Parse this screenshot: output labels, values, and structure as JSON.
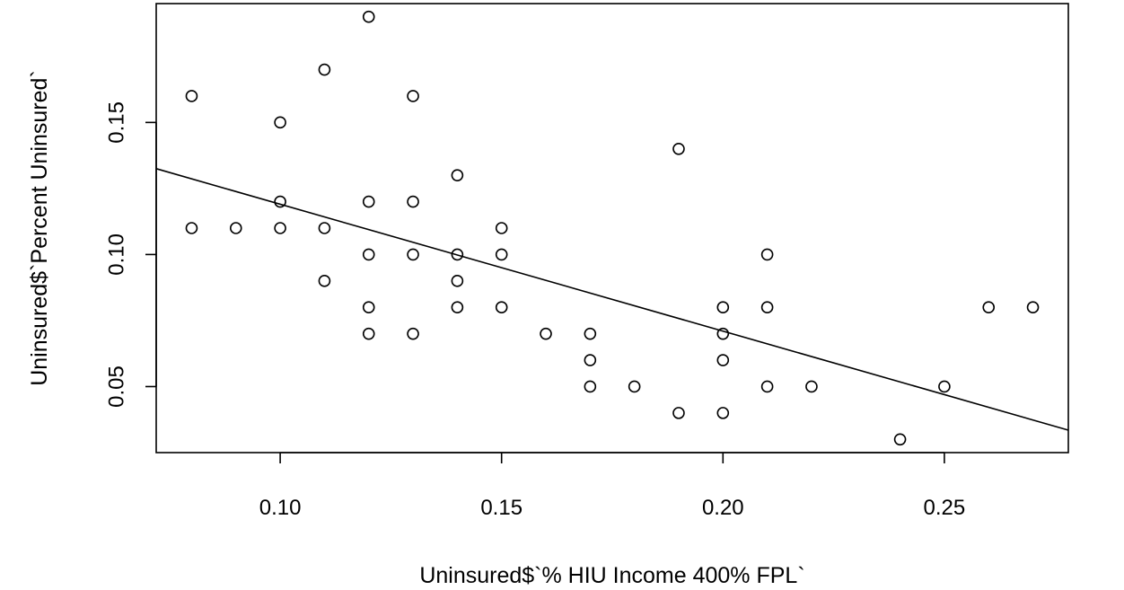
{
  "chart_data": {
    "type": "scatter",
    "title": "",
    "xlabel": "Uninsured$`% HIU Income 400% FPL`",
    "ylabel": "Uninsured$`Percent Uninsured`",
    "xlim": [
      0.072,
      0.278
    ],
    "ylim": [
      0.025,
      0.195
    ],
    "x_ticks": [
      0.1,
      0.15,
      0.2,
      0.25
    ],
    "x_tick_labels": [
      "0.10",
      "0.15",
      "0.20",
      "0.25"
    ],
    "y_ticks": [
      0.05,
      0.1,
      0.15
    ],
    "y_tick_labels": [
      "0.05",
      "0.10",
      "0.15"
    ],
    "grid": false,
    "points": [
      {
        "x": 0.08,
        "y": 0.16
      },
      {
        "x": 0.08,
        "y": 0.11
      },
      {
        "x": 0.09,
        "y": 0.11
      },
      {
        "x": 0.1,
        "y": 0.15
      },
      {
        "x": 0.1,
        "y": 0.12
      },
      {
        "x": 0.1,
        "y": 0.11
      },
      {
        "x": 0.11,
        "y": 0.17
      },
      {
        "x": 0.11,
        "y": 0.11
      },
      {
        "x": 0.11,
        "y": 0.09
      },
      {
        "x": 0.12,
        "y": 0.19
      },
      {
        "x": 0.12,
        "y": 0.12
      },
      {
        "x": 0.12,
        "y": 0.1
      },
      {
        "x": 0.12,
        "y": 0.08
      },
      {
        "x": 0.12,
        "y": 0.07
      },
      {
        "x": 0.13,
        "y": 0.16
      },
      {
        "x": 0.13,
        "y": 0.12
      },
      {
        "x": 0.13,
        "y": 0.1
      },
      {
        "x": 0.13,
        "y": 0.07
      },
      {
        "x": 0.14,
        "y": 0.13
      },
      {
        "x": 0.14,
        "y": 0.1
      },
      {
        "x": 0.14,
        "y": 0.09
      },
      {
        "x": 0.14,
        "y": 0.08
      },
      {
        "x": 0.15,
        "y": 0.11
      },
      {
        "x": 0.15,
        "y": 0.1
      },
      {
        "x": 0.15,
        "y": 0.08
      },
      {
        "x": 0.16,
        "y": 0.07
      },
      {
        "x": 0.17,
        "y": 0.07
      },
      {
        "x": 0.17,
        "y": 0.06
      },
      {
        "x": 0.17,
        "y": 0.05
      },
      {
        "x": 0.18,
        "y": 0.05
      },
      {
        "x": 0.19,
        "y": 0.14
      },
      {
        "x": 0.19,
        "y": 0.04
      },
      {
        "x": 0.2,
        "y": 0.08
      },
      {
        "x": 0.2,
        "y": 0.07
      },
      {
        "x": 0.2,
        "y": 0.06
      },
      {
        "x": 0.2,
        "y": 0.04
      },
      {
        "x": 0.21,
        "y": 0.1
      },
      {
        "x": 0.21,
        "y": 0.08
      },
      {
        "x": 0.21,
        "y": 0.05
      },
      {
        "x": 0.22,
        "y": 0.05
      },
      {
        "x": 0.24,
        "y": 0.03
      },
      {
        "x": 0.25,
        "y": 0.05
      },
      {
        "x": 0.26,
        "y": 0.08
      },
      {
        "x": 0.27,
        "y": 0.08
      }
    ],
    "fit_line": {
      "x": [
        0.072,
        0.278
      ],
      "y": [
        0.1325,
        0.0335
      ]
    }
  }
}
